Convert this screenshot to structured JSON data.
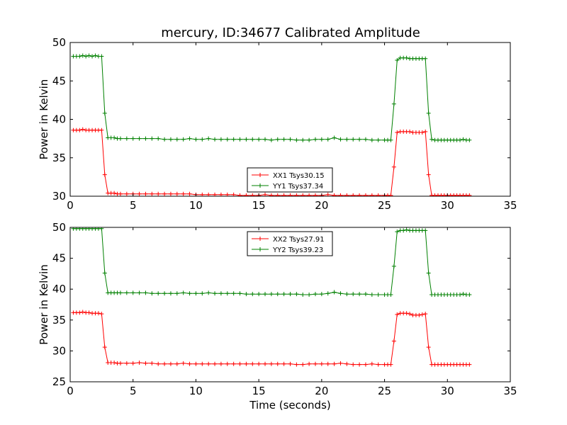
{
  "title": "mercury, ID:34677 Calibrated Amplitude",
  "chart_data": [
    {
      "type": "line",
      "title": "mercury, ID:34677 Calibrated Amplitude",
      "xlabel": "",
      "ylabel": "Power in Kelvin",
      "xlim": [
        0,
        35
      ],
      "ylim": [
        30,
        50
      ],
      "xticks": [
        0,
        5,
        10,
        15,
        20,
        25,
        30,
        35
      ],
      "yticks": [
        30,
        35,
        40,
        45,
        50
      ],
      "grid": false,
      "legend": "bottom-center",
      "series": [
        {
          "name": "XX1 Tsys30.15",
          "color": "#ff0000",
          "x": [
            0.25,
            0.5,
            0.75,
            1.0,
            1.25,
            1.5,
            1.75,
            2.0,
            2.25,
            2.5,
            2.75,
            3.0,
            3.25,
            3.5,
            3.75,
            4.0,
            4.5,
            5.0,
            5.5,
            6.0,
            6.5,
            7.0,
            7.5,
            8.0,
            8.5,
            9.0,
            9.5,
            10.0,
            10.5,
            11.0,
            11.5,
            12.0,
            12.5,
            13.0,
            13.5,
            14.0,
            14.5,
            15.0,
            15.5,
            16.0,
            16.5,
            17.0,
            17.5,
            18.0,
            18.5,
            19.0,
            19.5,
            20.0,
            20.5,
            21.0,
            21.5,
            22.0,
            22.5,
            23.0,
            23.5,
            24.0,
            24.5,
            25.0,
            25.25,
            25.5,
            25.75,
            26.0,
            26.25,
            26.5,
            26.75,
            27.0,
            27.25,
            27.5,
            27.75,
            28.0,
            28.25,
            28.5,
            28.75,
            29.0,
            29.25,
            29.5,
            29.75,
            30.0,
            30.25,
            30.5,
            30.75,
            31.0,
            31.25,
            31.5,
            31.75
          ],
          "y": [
            38.6,
            38.6,
            38.6,
            38.7,
            38.6,
            38.6,
            38.6,
            38.6,
            38.6,
            38.6,
            32.8,
            30.4,
            30.4,
            30.4,
            30.3,
            30.3,
            30.3,
            30.3,
            30.3,
            30.3,
            30.3,
            30.3,
            30.3,
            30.3,
            30.3,
            30.3,
            30.3,
            30.2,
            30.2,
            30.2,
            30.2,
            30.2,
            30.2,
            30.2,
            30.1,
            30.1,
            30.1,
            30.1,
            30.2,
            30.1,
            30.1,
            30.1,
            30.1,
            30.1,
            30.1,
            30.1,
            30.1,
            30.1,
            30.2,
            30.1,
            30.1,
            30.1,
            30.1,
            30.1,
            30.1,
            30.1,
            30.1,
            30.1,
            30.1,
            30.1,
            33.8,
            38.3,
            38.4,
            38.4,
            38.4,
            38.4,
            38.3,
            38.3,
            38.3,
            38.3,
            38.4,
            32.8,
            30.1,
            30.1,
            30.1,
            30.1,
            30.1,
            30.1,
            30.1,
            30.1,
            30.1,
            30.1,
            30.1,
            30.1,
            30.1
          ]
        },
        {
          "name": "YY1 Tsys37.34",
          "color": "#008000",
          "x": [
            0.25,
            0.5,
            0.75,
            1.0,
            1.25,
            1.5,
            1.75,
            2.0,
            2.25,
            2.5,
            2.75,
            3.0,
            3.25,
            3.5,
            3.75,
            4.0,
            4.5,
            5.0,
            5.5,
            6.0,
            6.5,
            7.0,
            7.5,
            8.0,
            8.5,
            9.0,
            9.5,
            10.0,
            10.5,
            11.0,
            11.5,
            12.0,
            12.5,
            13.0,
            13.5,
            14.0,
            14.5,
            15.0,
            15.5,
            16.0,
            16.5,
            17.0,
            17.5,
            18.0,
            18.5,
            19.0,
            19.5,
            20.0,
            20.5,
            21.0,
            21.5,
            22.0,
            22.5,
            23.0,
            23.5,
            24.0,
            24.5,
            25.0,
            25.25,
            25.5,
            25.75,
            26.0,
            26.25,
            26.5,
            26.75,
            27.0,
            27.25,
            27.5,
            27.75,
            28.0,
            28.25,
            28.5,
            28.75,
            29.0,
            29.25,
            29.5,
            29.75,
            30.0,
            30.25,
            30.5,
            30.75,
            31.0,
            31.25,
            31.5,
            31.75
          ],
          "y": [
            48.2,
            48.2,
            48.2,
            48.3,
            48.2,
            48.3,
            48.2,
            48.3,
            48.2,
            48.2,
            40.8,
            37.6,
            37.6,
            37.6,
            37.5,
            37.5,
            37.5,
            37.5,
            37.5,
            37.5,
            37.5,
            37.5,
            37.4,
            37.4,
            37.4,
            37.4,
            37.5,
            37.4,
            37.4,
            37.5,
            37.4,
            37.4,
            37.4,
            37.4,
            37.4,
            37.4,
            37.4,
            37.4,
            37.4,
            37.3,
            37.4,
            37.4,
            37.4,
            37.3,
            37.3,
            37.3,
            37.4,
            37.4,
            37.4,
            37.6,
            37.4,
            37.4,
            37.4,
            37.4,
            37.4,
            37.3,
            37.3,
            37.3,
            37.3,
            37.3,
            42.0,
            47.7,
            48.0,
            48.0,
            48.0,
            47.9,
            47.9,
            47.9,
            47.9,
            47.9,
            47.9,
            40.8,
            37.4,
            37.3,
            37.3,
            37.3,
            37.3,
            37.3,
            37.3,
            37.3,
            37.3,
            37.3,
            37.4,
            37.3,
            37.3
          ]
        }
      ]
    },
    {
      "type": "line",
      "title": "",
      "xlabel": "Time (seconds)",
      "ylabel": "Power in Kelvin",
      "xlim": [
        0,
        35
      ],
      "ylim": [
        25,
        50
      ],
      "xticks": [
        0,
        5,
        10,
        15,
        20,
        25,
        30,
        35
      ],
      "yticks": [
        25,
        30,
        35,
        40,
        45,
        50
      ],
      "grid": false,
      "legend": "top-center",
      "series": [
        {
          "name": "XX2 Tsys27.91",
          "color": "#ff0000",
          "x": [
            0.25,
            0.5,
            0.75,
            1.0,
            1.25,
            1.5,
            1.75,
            2.0,
            2.25,
            2.5,
            2.75,
            3.0,
            3.25,
            3.5,
            3.75,
            4.0,
            4.5,
            5.0,
            5.5,
            6.0,
            6.5,
            7.0,
            7.5,
            8.0,
            8.5,
            9.0,
            9.5,
            10.0,
            10.5,
            11.0,
            11.5,
            12.0,
            12.5,
            13.0,
            13.5,
            14.0,
            14.5,
            15.0,
            15.5,
            16.0,
            16.5,
            17.0,
            17.5,
            18.0,
            18.5,
            19.0,
            19.5,
            20.0,
            20.5,
            21.0,
            21.5,
            22.0,
            22.5,
            23.0,
            23.5,
            24.0,
            24.5,
            25.0,
            25.25,
            25.5,
            25.75,
            26.0,
            26.25,
            26.5,
            26.75,
            27.0,
            27.25,
            27.5,
            27.75,
            28.0,
            28.25,
            28.5,
            28.75,
            29.0,
            29.25,
            29.5,
            29.75,
            30.0,
            30.25,
            30.5,
            30.75,
            31.0,
            31.25,
            31.5,
            31.75
          ],
          "y": [
            36.2,
            36.2,
            36.2,
            36.3,
            36.2,
            36.2,
            36.1,
            36.1,
            36.1,
            36.0,
            30.6,
            28.1,
            28.1,
            28.1,
            28.0,
            28.0,
            28.0,
            28.0,
            28.1,
            28.0,
            28.0,
            27.9,
            27.9,
            27.9,
            27.9,
            28.0,
            27.9,
            27.9,
            27.9,
            27.9,
            27.9,
            27.9,
            27.9,
            27.9,
            27.9,
            27.9,
            27.9,
            27.9,
            27.9,
            27.9,
            27.9,
            27.9,
            27.9,
            27.8,
            27.8,
            27.9,
            27.9,
            27.9,
            27.9,
            27.9,
            28.0,
            27.9,
            27.8,
            27.8,
            27.8,
            27.9,
            27.8,
            27.8,
            27.8,
            27.8,
            31.6,
            35.9,
            36.1,
            36.1,
            36.1,
            36.0,
            35.8,
            35.8,
            35.8,
            35.9,
            36.0,
            30.6,
            27.8,
            27.8,
            27.8,
            27.8,
            27.8,
            27.8,
            27.8,
            27.8,
            27.8,
            27.8,
            27.8,
            27.8,
            27.8
          ]
        },
        {
          "name": "YY2 Tsys39.23",
          "color": "#008000",
          "x": [
            0.25,
            0.5,
            0.75,
            1.0,
            1.25,
            1.5,
            1.75,
            2.0,
            2.25,
            2.5,
            2.75,
            3.0,
            3.25,
            3.5,
            3.75,
            4.0,
            4.5,
            5.0,
            5.5,
            6.0,
            6.5,
            7.0,
            7.5,
            8.0,
            8.5,
            9.0,
            9.5,
            10.0,
            10.5,
            11.0,
            11.5,
            12.0,
            12.5,
            13.0,
            13.5,
            14.0,
            14.5,
            15.0,
            15.5,
            16.0,
            16.5,
            17.0,
            17.5,
            18.0,
            18.5,
            19.0,
            19.5,
            20.0,
            20.5,
            21.0,
            21.5,
            22.0,
            22.5,
            23.0,
            23.5,
            24.0,
            24.5,
            25.0,
            25.25,
            25.5,
            25.75,
            26.0,
            26.25,
            26.5,
            26.75,
            27.0,
            27.25,
            27.5,
            27.75,
            28.0,
            28.25,
            28.5,
            28.75,
            29.0,
            29.25,
            29.5,
            29.75,
            30.0,
            30.25,
            30.5,
            30.75,
            31.0,
            31.25,
            31.5,
            31.75
          ],
          "y": [
            49.8,
            49.8,
            49.8,
            49.8,
            49.8,
            49.8,
            49.8,
            49.8,
            49.8,
            49.8,
            42.6,
            39.4,
            39.4,
            39.4,
            39.4,
            39.4,
            39.4,
            39.4,
            39.4,
            39.4,
            39.3,
            39.3,
            39.3,
            39.3,
            39.3,
            39.4,
            39.3,
            39.3,
            39.3,
            39.4,
            39.3,
            39.3,
            39.3,
            39.3,
            39.3,
            39.2,
            39.2,
            39.2,
            39.2,
            39.2,
            39.2,
            39.2,
            39.2,
            39.2,
            39.1,
            39.1,
            39.2,
            39.2,
            39.3,
            39.5,
            39.3,
            39.2,
            39.2,
            39.2,
            39.2,
            39.1,
            39.1,
            39.1,
            39.1,
            39.1,
            43.7,
            49.3,
            49.5,
            49.5,
            49.6,
            49.5,
            49.5,
            49.5,
            49.5,
            49.5,
            49.5,
            42.6,
            39.1,
            39.1,
            39.1,
            39.1,
            39.1,
            39.1,
            39.1,
            39.1,
            39.1,
            39.1,
            39.2,
            39.1,
            39.1
          ]
        }
      ]
    }
  ]
}
